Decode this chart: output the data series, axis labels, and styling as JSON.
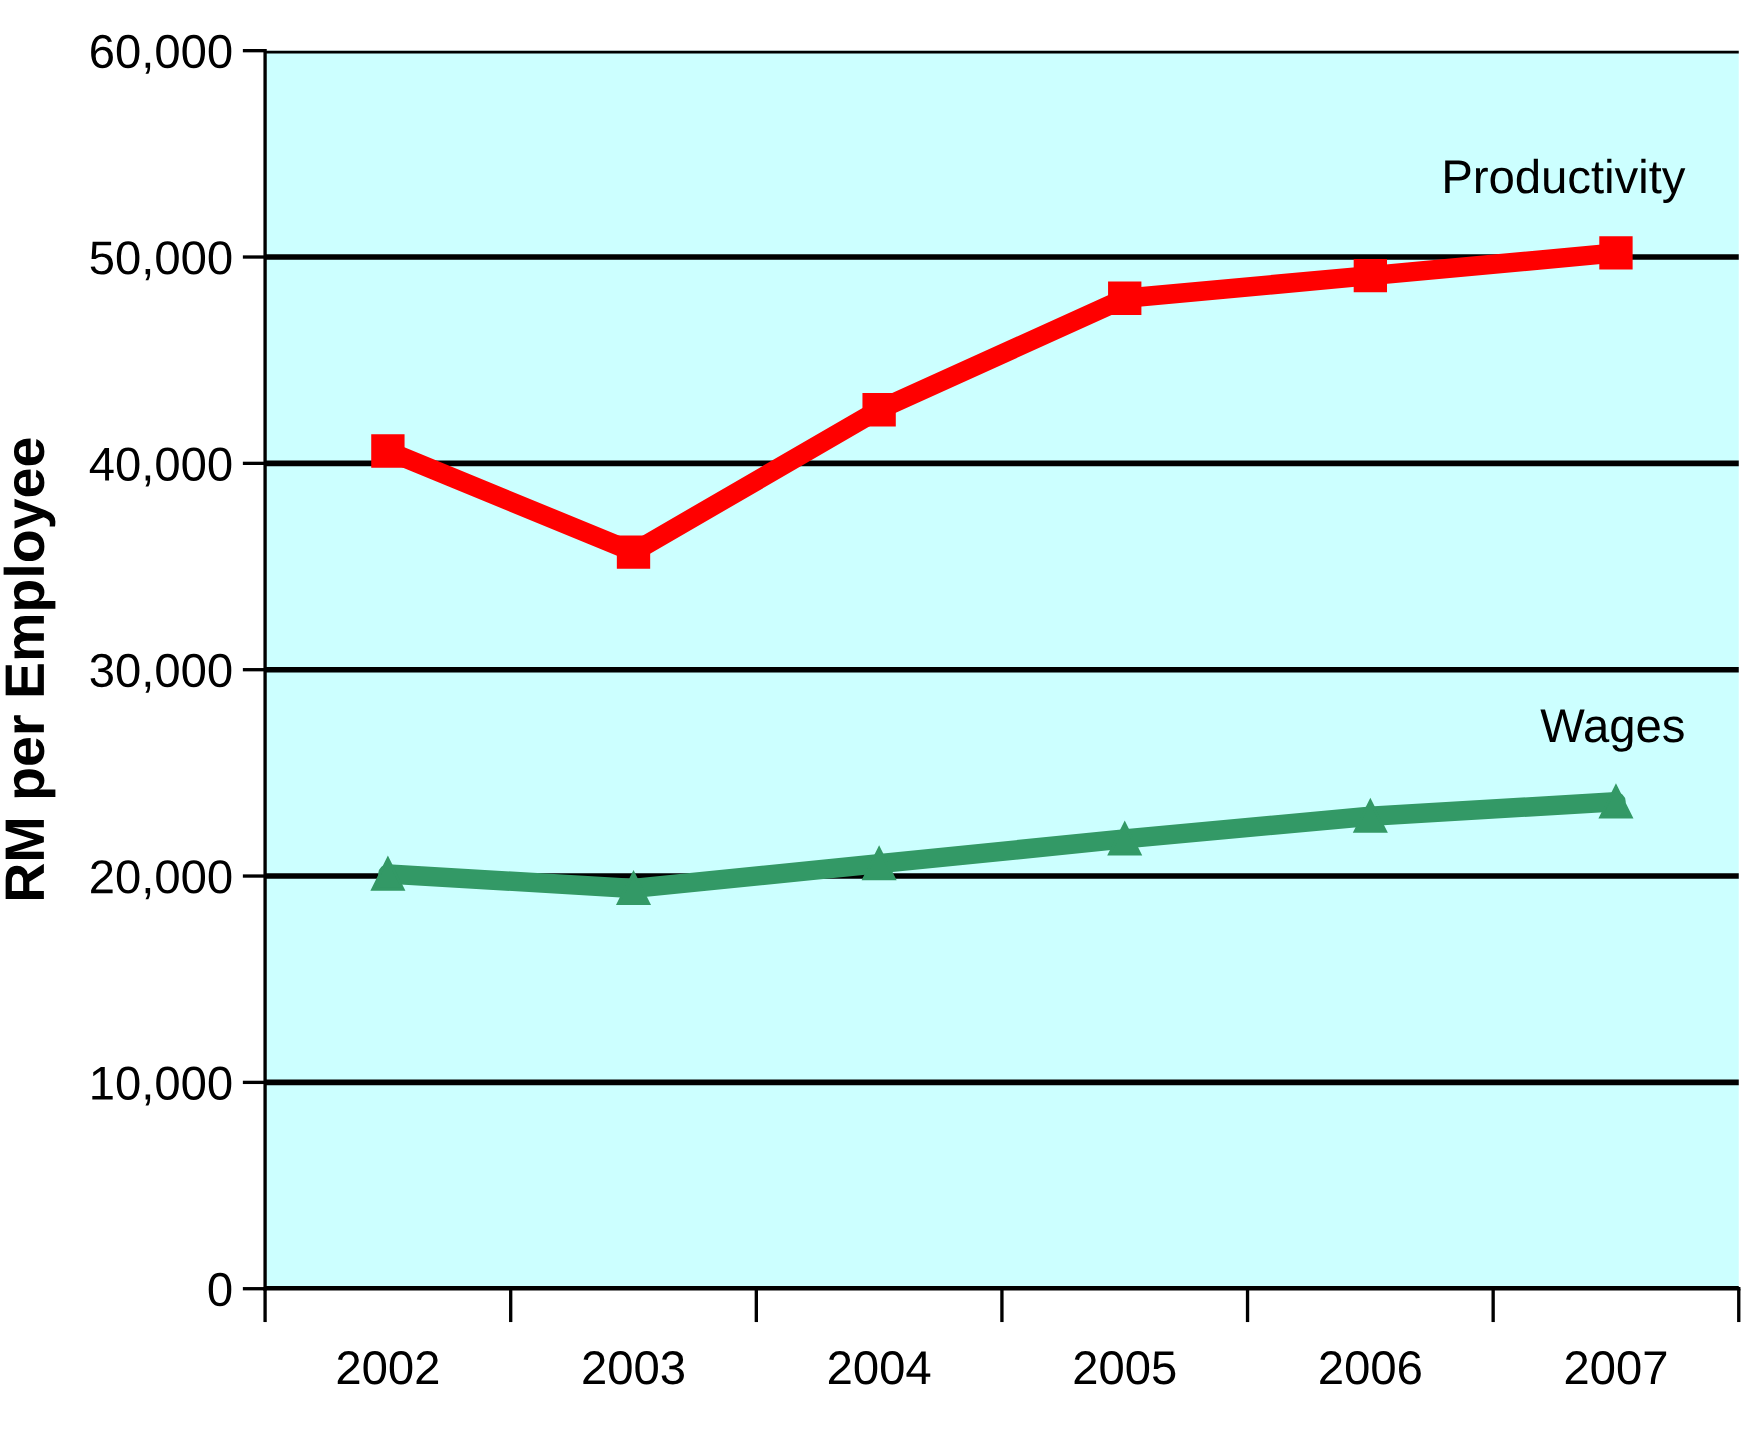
{
  "chart_data": {
    "type": "line",
    "ylabel": "RM per Employee",
    "categories": [
      "2002",
      "2003",
      "2004",
      "2005",
      "2006",
      "2007"
    ],
    "series": [
      {
        "name": "Productivity",
        "color": "#ff0000",
        "marker": "square",
        "values": [
          40600,
          35700,
          42600,
          48000,
          49100,
          50200
        ]
      },
      {
        "name": "Wages",
        "color": "#339966",
        "marker": "triangle",
        "values": [
          20100,
          19400,
          20600,
          21800,
          22900,
          23600
        ]
      }
    ],
    "ylim": [
      0,
      60000
    ],
    "yticks": [
      {
        "value": 0,
        "label": "0"
      },
      {
        "value": 10000,
        "label": "10,000"
      },
      {
        "value": 20000,
        "label": "20,000"
      },
      {
        "value": 30000,
        "label": "30,000"
      },
      {
        "value": 40000,
        "label": "40,000"
      },
      {
        "value": 50000,
        "label": "50,000"
      },
      {
        "value": 60000,
        "label": "60,000"
      }
    ],
    "grid": "y",
    "legend": false,
    "line_style": "solid"
  }
}
